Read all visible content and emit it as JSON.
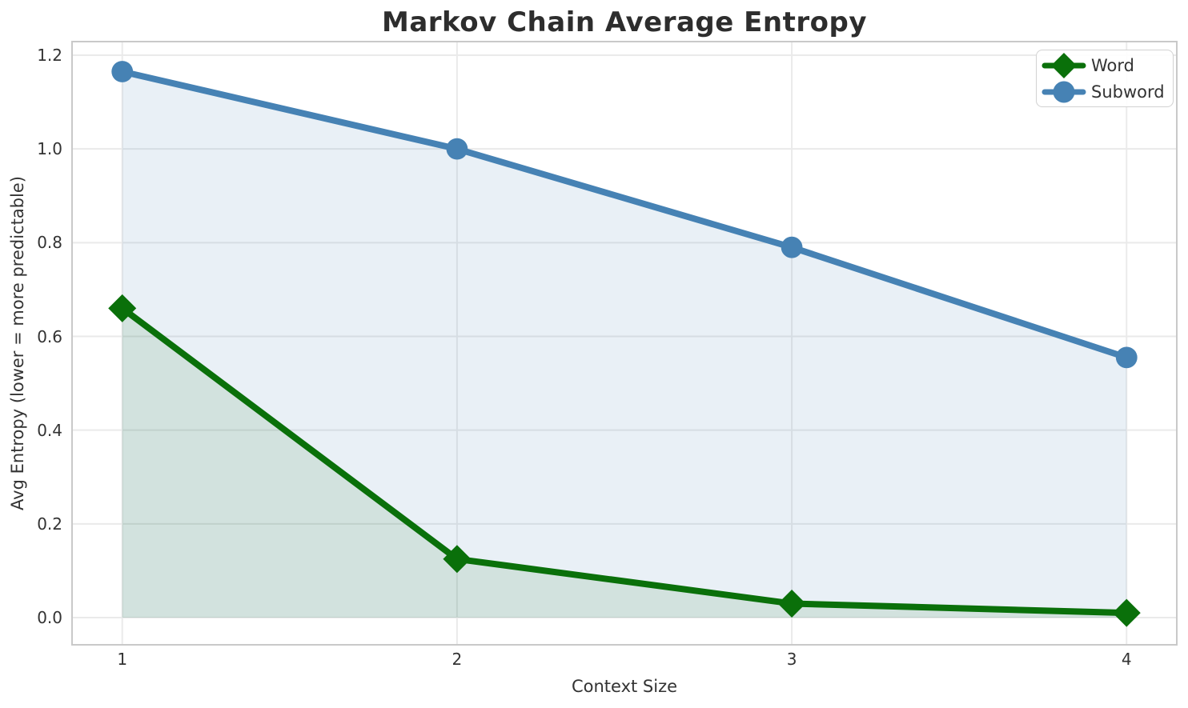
{
  "chart_data": {
    "type": "line",
    "title": "Markov Chain Average Entropy",
    "xlabel": "Context Size",
    "ylabel": "Avg Entropy (lower = more predictable)",
    "x": [
      1,
      2,
      3,
      4
    ],
    "series": [
      {
        "name": "Word",
        "values": [
          0.66,
          0.125,
          0.03,
          0.01
        ],
        "color": "#0a700a",
        "marker": "diamond",
        "fill_to_zero": true,
        "fill_alpha": 0.1
      },
      {
        "name": "Subword",
        "values": [
          1.165,
          1.0,
          0.79,
          0.555
        ],
        "color": "#4682b4",
        "marker": "circle",
        "fill_to_zero": true,
        "fill_alpha": 0.12
      }
    ],
    "xticks": [
      "1",
      "2",
      "3",
      "4"
    ],
    "yticks": [
      "0.0",
      "0.2",
      "0.4",
      "0.6",
      "0.8",
      "1.0",
      "1.2"
    ],
    "xlim": [
      0.85,
      4.15
    ],
    "ylim": [
      -0.058,
      1.229
    ],
    "grid": true,
    "legend_position": "upper right",
    "legend_labels": [
      "Word",
      "Subword"
    ]
  },
  "colors": {
    "background": "#ffffff",
    "grid": "#eaeaea",
    "spine": "#c9c9c9",
    "text": "#333333",
    "title": "#2d2d2d",
    "legend_border": "#d2d2d2"
  }
}
